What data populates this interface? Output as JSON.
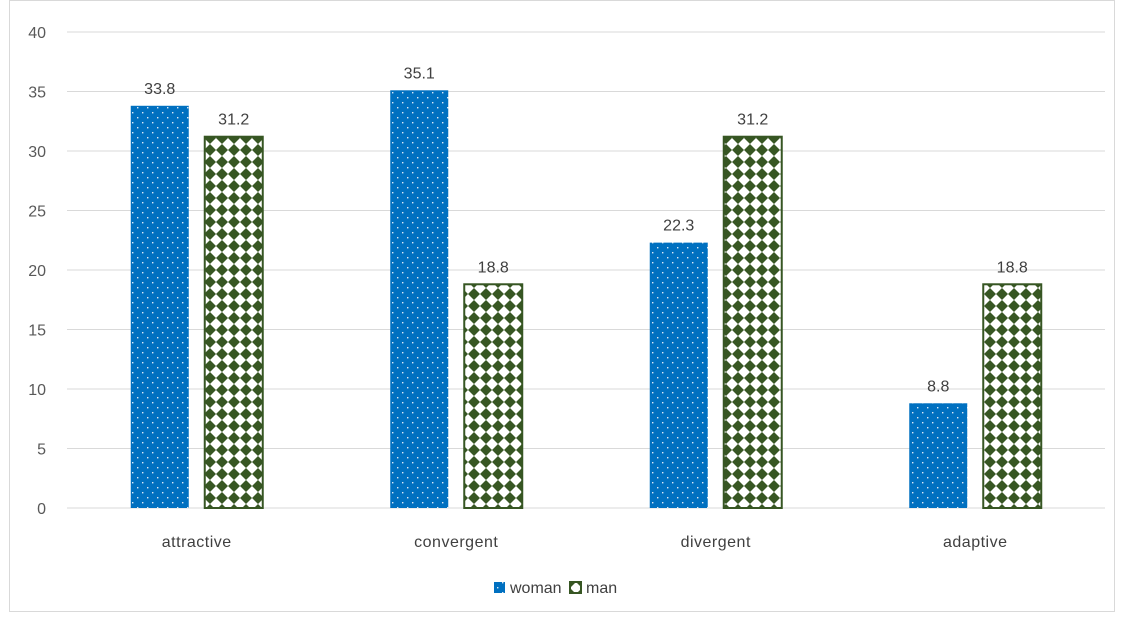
{
  "chart_data": {
    "type": "bar",
    "categories": [
      "attractive",
      "convergent",
      "divergent",
      "adaptive"
    ],
    "series": [
      {
        "name": "woman",
        "values": [
          33.8,
          35.1,
          22.3,
          8.8
        ],
        "color": "#0070c0",
        "pattern": "dots"
      },
      {
        "name": "man",
        "values": [
          31.2,
          18.8,
          31.2,
          18.8
        ],
        "color": "#375623",
        "pattern": "checkerboard-diamond"
      }
    ],
    "y_ticks": [
      "0",
      "5",
      "10",
      "15",
      "20",
      "25",
      "30",
      "35",
      "40"
    ],
    "ylim": [
      0,
      40
    ],
    "grid": true,
    "legend_position": "bottom",
    "data_labels": true
  }
}
